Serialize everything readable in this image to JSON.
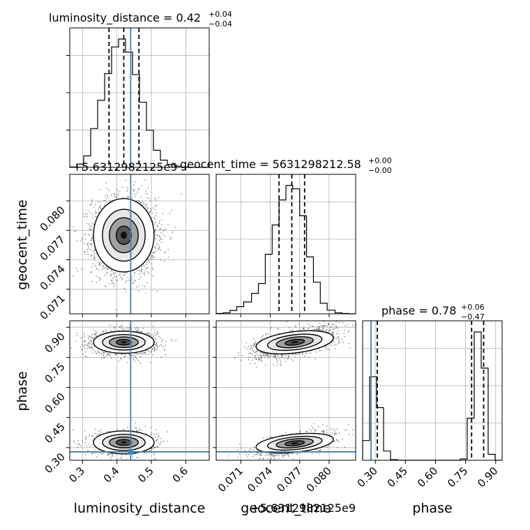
{
  "chart_data": {
    "type": "corner",
    "parameters": [
      "luminosity_distance",
      "geocent_time",
      "phase"
    ],
    "axis_labels": {
      "luminosity_distance": "luminosity_distance",
      "geocent_time": "geocent_time",
      "phase": "phase"
    },
    "offset_text": "+5.6312982125e9",
    "titles": [
      {
        "name": "luminosity_distance",
        "text": "luminosity_distance = 0.42",
        "sup": "+0.04",
        "sub": "−0.04"
      },
      {
        "name": "geocent_time",
        "text": "geocent_time = 5631298212.58",
        "sup": "+0.00",
        "sub": "−0.00"
      },
      {
        "name": "phase",
        "text": "phase = 0.78",
        "sup": "+0.06",
        "sub": "−0.47"
      }
    ],
    "ticks": {
      "luminosity_distance": {
        "values": [
          0.3,
          0.4,
          0.5,
          0.6
        ],
        "labels": [
          "0.3",
          "0.4",
          "0.5",
          "0.6"
        ]
      },
      "geocent_time": {
        "values": [
          0.071,
          0.074,
          0.077,
          0.08
        ],
        "labels": [
          "0.071",
          "0.074",
          "0.077",
          "0.080"
        ]
      },
      "phase": {
        "values": [
          0.3,
          0.45,
          0.6,
          0.75,
          0.9
        ],
        "labels": [
          "0.30",
          "0.45",
          "0.60",
          "0.75",
          "0.90"
        ]
      }
    },
    "ranges": {
      "luminosity_distance": [
        0.263,
        0.668
      ],
      "geocent_time": [
        0.0685,
        0.0827
      ],
      "phase": [
        0.237,
        0.932
      ]
    },
    "injection": {
      "luminosity_distance": 0.44,
      "geocent_time": null,
      "phase": 0.279
    },
    "quantiles": {
      "luminosity_distance": [
        0.377,
        0.42,
        0.464
      ],
      "geocent_time": [
        0.0749,
        0.0762,
        0.0775
      ],
      "phase": [
        0.31,
        0.78,
        0.84
      ]
    },
    "histograms": {
      "luminosity_distance": {
        "edges": [
          0.263,
          0.2833,
          0.3035,
          0.3238,
          0.344,
          0.3643,
          0.3845,
          0.4048,
          0.425,
          0.4453,
          0.4655,
          0.4858,
          0.506,
          0.5263,
          0.5465,
          0.5668,
          0.587,
          0.6073,
          0.6275,
          0.6478,
          0.668
        ],
        "counts": [
          0.1,
          1.0,
          3.5,
          11.8,
          20.4,
          28.5,
          36.6,
          39.0,
          35.0,
          28.2,
          19.8,
          11.3,
          5.2,
          2.2,
          0.9,
          0.4,
          0.1,
          0.0,
          0.0,
          0.0
        ]
      },
      "geocent_time": {
        "edges": [
          0.0685,
          0.0692,
          0.0699,
          0.0706,
          0.0713,
          0.0721,
          0.0728,
          0.0735,
          0.0742,
          0.0749,
          0.0756,
          0.0763,
          0.077,
          0.0777,
          0.0784,
          0.0791,
          0.0798,
          0.0806,
          0.0813,
          0.082,
          0.0827
        ],
        "counts": [
          0.1,
          0.3,
          1.0,
          2.2,
          3.6,
          6.2,
          9.2,
          18.1,
          27.0,
          34.6,
          39.0,
          38.0,
          29.8,
          17.3,
          9.6,
          3.2,
          1.1,
          0.3,
          0.1,
          0.0
        ]
      },
      "phase": {
        "edges": [
          0.237,
          0.2718,
          0.3065,
          0.3413,
          0.376,
          0.4108,
          0.4455,
          0.4803,
          0.515,
          0.5498,
          0.5845,
          0.6193,
          0.654,
          0.6888,
          0.7235,
          0.758,
          0.793,
          0.8278,
          0.8625,
          0.8973,
          0.932
        ],
        "counts": [
          3.0,
          12.7,
          8.0,
          1.4,
          0.1,
          0.0,
          0.0,
          0.0,
          0.0,
          0.0,
          0.0,
          0.0,
          0.0,
          0.0,
          0.2,
          6.4,
          19.5,
          14.0,
          0.9,
          0.0
        ]
      }
    },
    "joint": {
      "geocent_time_vs_luminosity_distance": [
        {
          "center": [
            0.42,
            0.0765
          ],
          "spread": [
            0.04,
            0.0017
          ],
          "corr": 0.0,
          "weight": 1.0
        }
      ],
      "phase_vs_luminosity_distance": [
        {
          "center": [
            0.42,
            0.825
          ],
          "spread": [
            0.04,
            0.025
          ],
          "corr": 0.0,
          "weight": 0.65
        },
        {
          "center": [
            0.42,
            0.326
          ],
          "spread": [
            0.04,
            0.026
          ],
          "corr": 0.0,
          "weight": 0.35
        }
      ],
      "phase_vs_geocent_time": [
        {
          "center": [
            0.0765,
            0.825
          ],
          "spread": [
            0.0018,
            0.033
          ],
          "corr": 0.6,
          "weight": 0.65
        },
        {
          "center": [
            0.0765,
            0.322
          ],
          "spread": [
            0.0018,
            0.028
          ],
          "corr": 0.6,
          "weight": 0.35
        }
      ]
    },
    "grid": true,
    "colors": {
      "line": "#000000",
      "injection": "#4682b4",
      "grid": "#b0b0b0"
    }
  }
}
